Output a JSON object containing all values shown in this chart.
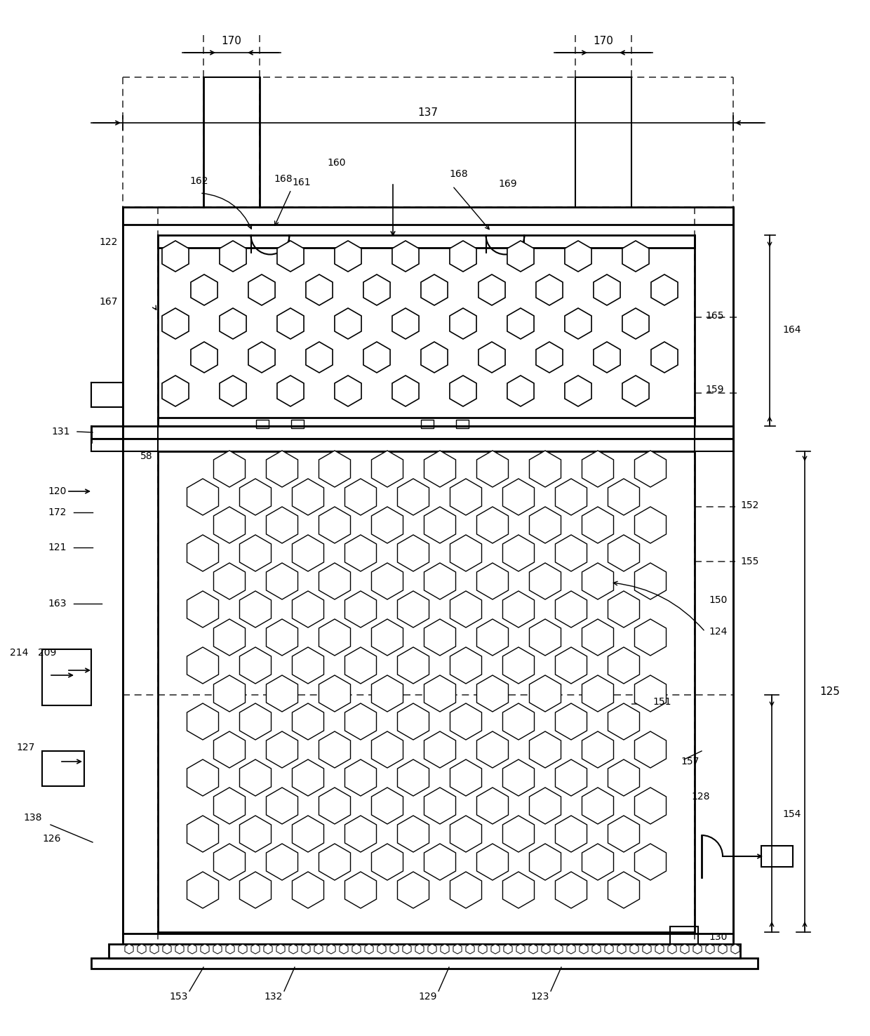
{
  "bg_color": "#ffffff",
  "line_color": "#000000",
  "dashed_color": "#555555",
  "fig_width": 12.4,
  "fig_height": 14.76,
  "labels": {
    "170_left": "170",
    "170_right": "170",
    "137": "137",
    "162": "162",
    "168_left": "168",
    "160": "160",
    "161": "161",
    "168_right": "168",
    "169": "169",
    "167": "167",
    "122": "122",
    "165": "165",
    "159": "159",
    "131": "131",
    "164": "164",
    "58": "58",
    "120": "120",
    "172": "172",
    "152": "152",
    "155": "155",
    "121": "121",
    "150": "150",
    "163": "163",
    "124": "124",
    "214": "214",
    "209": "209",
    "125": "125",
    "127": "127",
    "151": "151",
    "154": "154",
    "138": "138",
    "157": "157",
    "126": "126",
    "128": "128",
    "130": "130",
    "153": "153",
    "132": "132",
    "129": "129",
    "123": "123"
  }
}
